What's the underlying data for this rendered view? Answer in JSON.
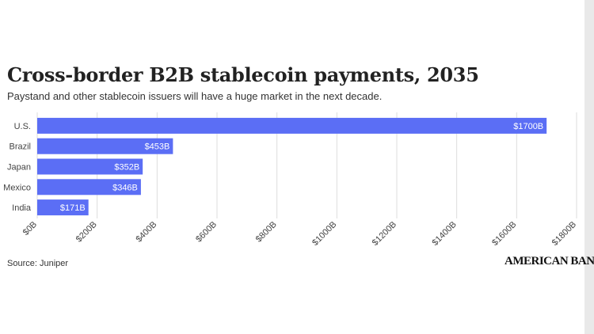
{
  "header": {
    "title": "Cross-border B2B stablecoin payments, 2035",
    "subtitle": "Paystand and other stablecoin issuers will have a huge market in the next decade."
  },
  "footer": {
    "source": "Source: Juniper",
    "logo": "AMERICAN BANKER"
  },
  "colors": {
    "bar": "#5b6ef5",
    "grid": "#dddddd",
    "axis_text": "#444444",
    "label_text": "#ffffff"
  },
  "chart_data": {
    "type": "bar",
    "orientation": "horizontal",
    "categories": [
      "U.S.",
      "Brazil",
      "Japan",
      "Mexico",
      "India"
    ],
    "values": [
      1700,
      453,
      352,
      346,
      171
    ],
    "value_labels": [
      "$1700B",
      "$453B",
      "$352B",
      "$346B",
      "$171B"
    ],
    "xlim": [
      0,
      1800
    ],
    "xticks": [
      0,
      200,
      400,
      600,
      800,
      1000,
      1200,
      1400,
      1600,
      1800
    ],
    "xtick_labels": [
      "$0B",
      "$200B",
      "$400B",
      "$600B",
      "$800B",
      "$1000B",
      "$1200B",
      "$1400B",
      "$1600B",
      "$1800B"
    ],
    "grid": true,
    "legend": "none"
  }
}
